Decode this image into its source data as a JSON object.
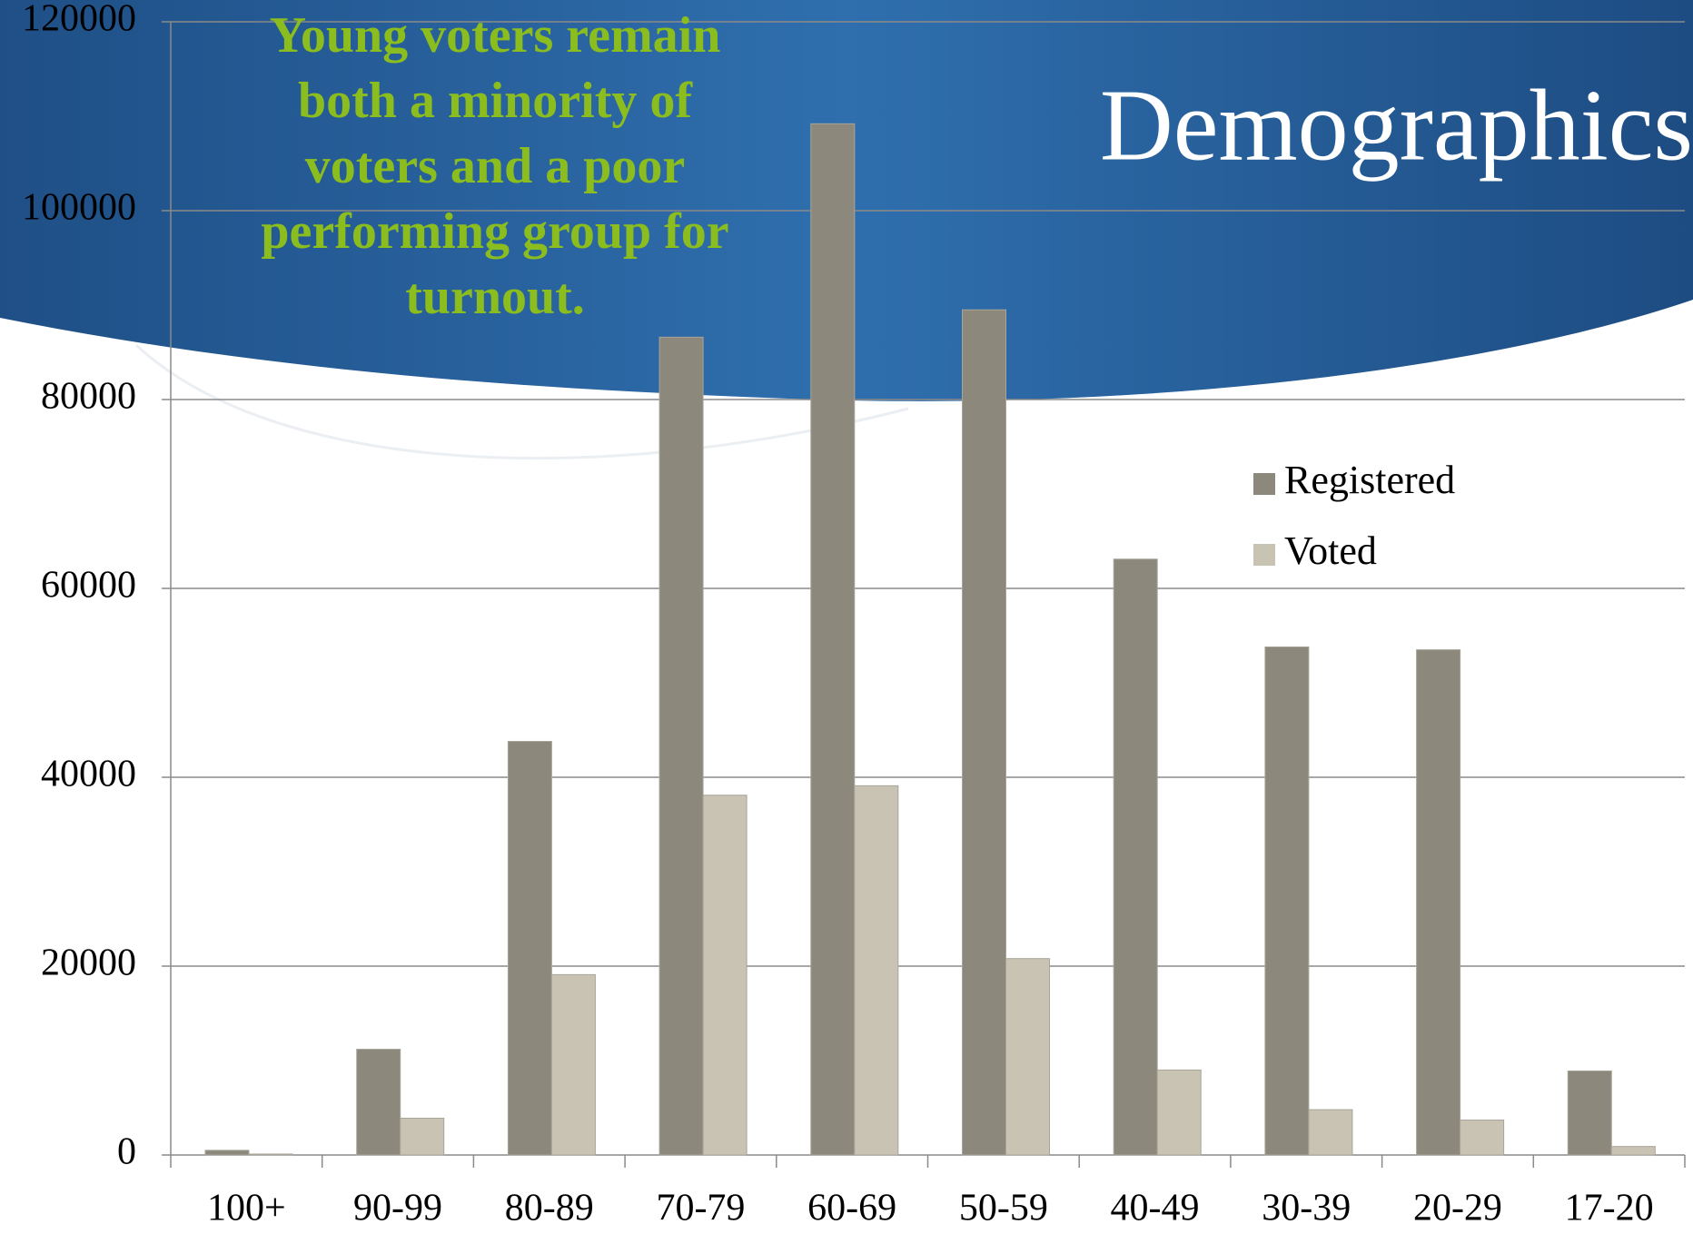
{
  "chart_data": {
    "type": "bar",
    "title": "Demographics",
    "annotation": [
      "Young voters remain",
      "both a minority of",
      "voters and a poor",
      "performing group for",
      "turnout."
    ],
    "categories": [
      "100+",
      "90-99",
      "80-89",
      "70-79",
      "60-69",
      "50-59",
      "40-49",
      "30-39",
      "20-29",
      "17-20"
    ],
    "series": [
      {
        "name": "Registered",
        "color": "#8c897c",
        "values": [
          500,
          11200,
          43800,
          86600,
          109200,
          89500,
          63100,
          53800,
          53500,
          8900
        ]
      },
      {
        "name": "Voted",
        "color": "#c8c3b3",
        "values": [
          100,
          3900,
          19100,
          38100,
          39100,
          20800,
          9000,
          4800,
          3700,
          900
        ]
      }
    ],
    "ylim": [
      0,
      120000
    ],
    "yticks": [
      0,
      20000,
      40000,
      60000,
      80000,
      100000,
      120000
    ],
    "grid": true
  }
}
